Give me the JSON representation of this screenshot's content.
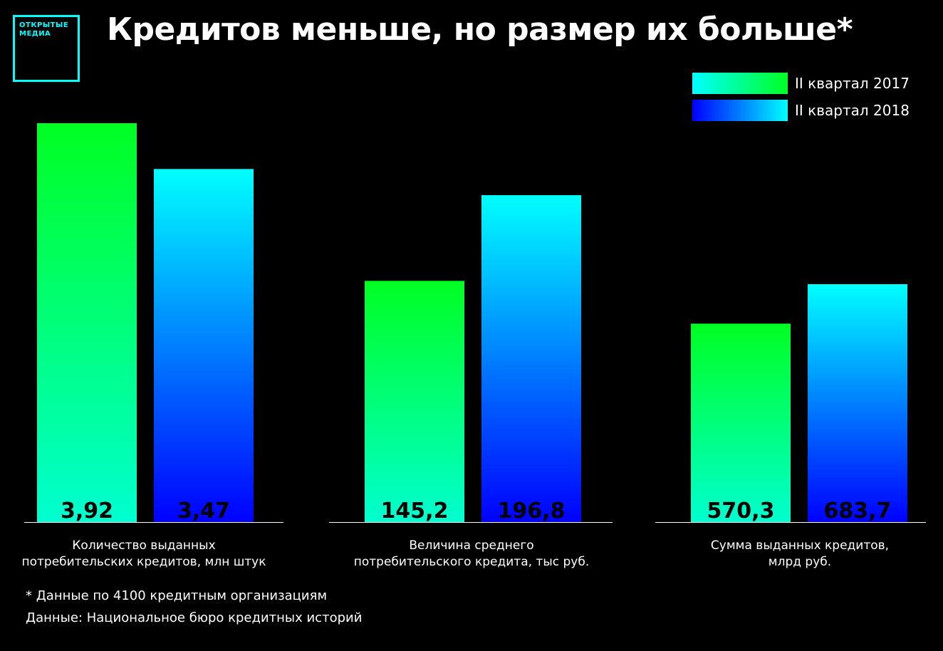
{
  "logo": {
    "line1": "ОТКРЫТЫЕ",
    "line2": "МЕДИА"
  },
  "title": "Кредитов меньше, но размер их больше*",
  "legend": [
    {
      "label": "II квартал 2017"
    },
    {
      "label": "II квартал 2018"
    }
  ],
  "colors": {
    "green": "#00ff22",
    "cyan": "#00ffff",
    "blue": "#0000ff",
    "background": "#000000"
  },
  "chart_data": {
    "type": "bar",
    "note": "",
    "groups": [
      {
        "label_lines": [
          "Количество выданных",
          "потребительских кредитов, млн штук"
        ],
        "values": [
          3.92,
          3.47
        ],
        "value_labels": [
          "3,92",
          "3,47"
        ]
      },
      {
        "label_lines": [
          "Величина среднего",
          "потребительского кредита, тыс руб."
        ],
        "values": [
          145.2,
          196.8
        ],
        "value_labels": [
          "145,2",
          "196,8"
        ]
      },
      {
        "label_lines": [
          "Сумма выданных кредитов,",
          "млрд руб."
        ],
        "values": [
          570.3,
          683.7
        ],
        "value_labels": [
          "570,3",
          "683,7"
        ]
      }
    ],
    "series": [
      {
        "name": "II квартал 2017"
      },
      {
        "name": "II квартал 2018"
      }
    ]
  },
  "footnotes": {
    "asterisk": "* Данные по 4100 кредитным организациям",
    "source": "Данные: Национальное бюро кредитных историй"
  }
}
